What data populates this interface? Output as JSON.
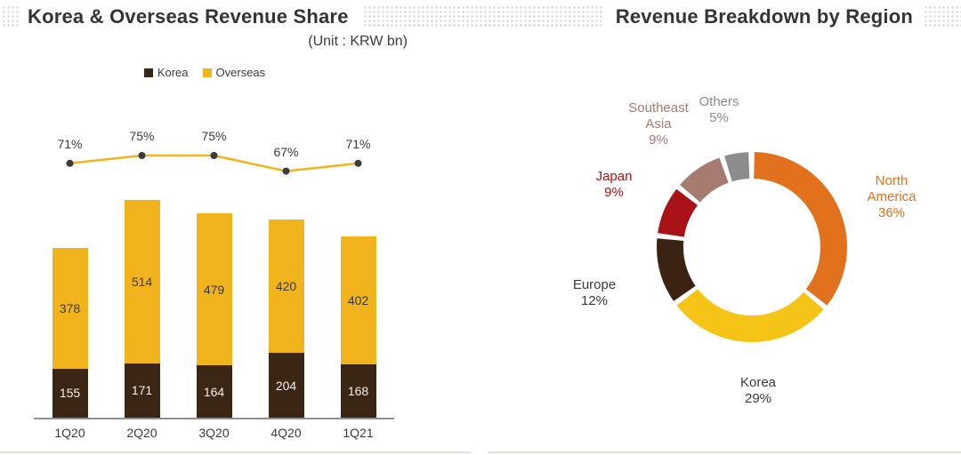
{
  "header": {
    "left_title": "Korea & Overseas Revenue Share",
    "right_title": "Revenue Breakdown by Region"
  },
  "left_chart": {
    "unit_label": "(Unit : KRW bn)"
  },
  "chart_data": [
    {
      "type": "bar",
      "title": "Korea & Overseas Revenue Share",
      "unit": "KRW bn",
      "stacked": true,
      "categories": [
        "1Q20",
        "2Q20",
        "3Q20",
        "4Q20",
        "1Q21"
      ],
      "series": [
        {
          "name": "Korea",
          "color": "#3B2616",
          "label_text_color": "#F6EFE7",
          "values": [
            155,
            171,
            164,
            204,
            168
          ]
        },
        {
          "name": "Overseas",
          "color": "#F2B41C",
          "label_text_color": "#3A3A3A",
          "values": [
            378,
            514,
            479,
            420,
            402
          ]
        }
      ],
      "line_series": {
        "name": "Overseas share %",
        "values_pct": [
          71,
          75,
          75,
          67,
          71
        ],
        "color": "#F2B41C",
        "marker_color": "#3B3B3B"
      }
    },
    {
      "type": "pie",
      "subtype": "donut",
      "title": "Revenue Breakdown by Region",
      "segments": [
        {
          "label": "North America",
          "pct": 36,
          "color": "#E2711D",
          "label_color": "#E2711D"
        },
        {
          "label": "Korea",
          "pct": 29,
          "color": "#F5C417",
          "label_color": "#3A3A3A"
        },
        {
          "label": "Europe",
          "pct": 12,
          "color": "#3A2313",
          "label_color": "#3A3A3A"
        },
        {
          "label": "Japan",
          "pct": 9,
          "color": "#A91216",
          "label_color": "#A91216"
        },
        {
          "label": "Southeast Asia",
          "pct": 9,
          "color": "#A67C70",
          "label_color": "#A67C70"
        },
        {
          "label": "Others",
          "pct": 5,
          "color": "#8C8C8C",
          "label_color": "#8C8C8C"
        }
      ]
    }
  ]
}
